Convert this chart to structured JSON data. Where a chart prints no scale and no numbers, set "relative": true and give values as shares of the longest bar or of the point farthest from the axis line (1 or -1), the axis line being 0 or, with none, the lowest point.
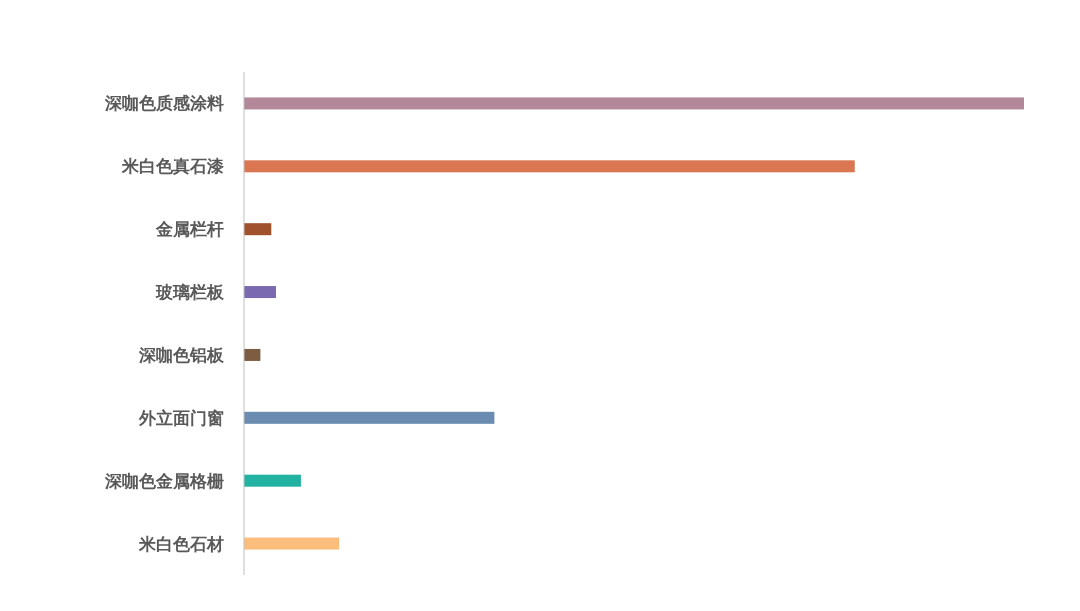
{
  "chart_data": {
    "type": "bar",
    "orientation": "horizontal",
    "relative": true,
    "categories": [
      "深咖色质感涂料",
      "米白色真石漆",
      "金属栏杆",
      "玻璃栏板",
      "深咖色铝板",
      "外立面门窗",
      "深咖色金属格栅",
      "米白色石材"
    ],
    "values": [
      1,
      0.783,
      0.035,
      0.041,
      0.021,
      0.321,
      0.073,
      0.122
    ],
    "colors": [
      "#b3889b",
      "#da7652",
      "#a0522d",
      "#7a69b0",
      "#7d5c42",
      "#6a8cb0",
      "#22b2a2",
      "#fbbd7c"
    ]
  }
}
